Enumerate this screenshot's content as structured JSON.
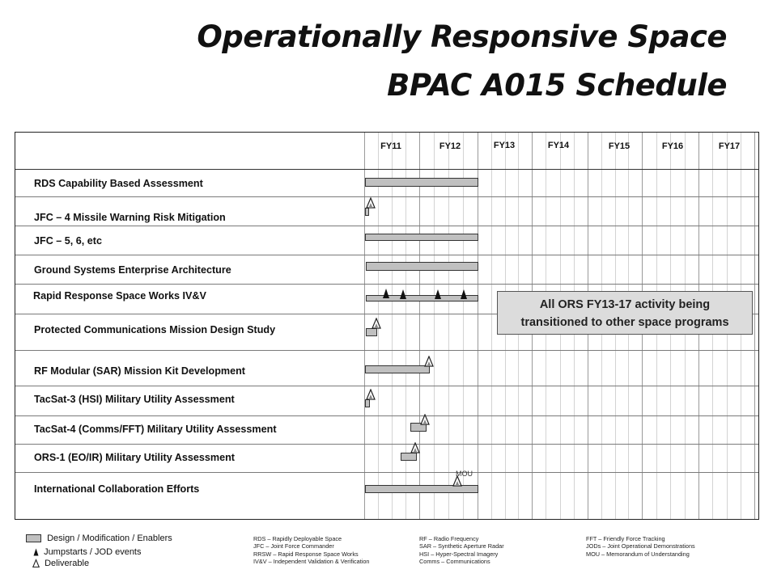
{
  "title_line1": "Operationally Responsive Space",
  "title_line2": "BPAC A015 Schedule",
  "fiscal_years": [
    "FY11",
    "FY12",
    "FY13",
    "FY14",
    "FY15",
    "FY16",
    "FY17"
  ],
  "rows": [
    "RDS Capability Based Assessment",
    "JFC – 4 Missile Warning Risk Mitigation",
    "JFC – 5, 6, etc",
    "Ground Systems Enterprise Architecture",
    "Rapid Response Space Works IV&V",
    "Protected Communications Mission Design Study",
    "RF Modular (SAR) Mission Kit Development",
    "TacSat-3 (HSI) Military Utility Assessment",
    "TacSat-4 (Comms/FFT) Military Utility Assessment",
    "ORS-1 (EO/IR) Military Utility Assessment",
    "International Collaboration Efforts"
  ],
  "note_line1": "All ORS FY13-17 activity being",
  "note_line2": "transitioned to other space programs",
  "mou_label": "MOU",
  "legend": {
    "design": "Design / Modification / Enablers",
    "jumpstarts": "Jumpstarts / JOD events",
    "deliverable": "Deliverable"
  },
  "abbreviations": {
    "col1": [
      "RDS – Rapidly Deployable Space",
      "JFC – Joint Force Commander",
      "RRSW – Rapid Response Space Works",
      "IV&V – Independent Validation & Verification"
    ],
    "col2": [
      "RF – Radio Frequency",
      "SAR – Synthetic Aperture Radar",
      "HSI – Hyper-Spectral Imagery",
      "Comms – Communications"
    ],
    "col3": [
      "FFT – Friendly Force Tracking",
      "JODs – Joint Operational Demonstrations",
      "MOU – Memorandum of Understanding"
    ]
  },
  "colors": {
    "bar_fill": "#c0c0c0",
    "note_fill": "#dcdcdc"
  }
}
